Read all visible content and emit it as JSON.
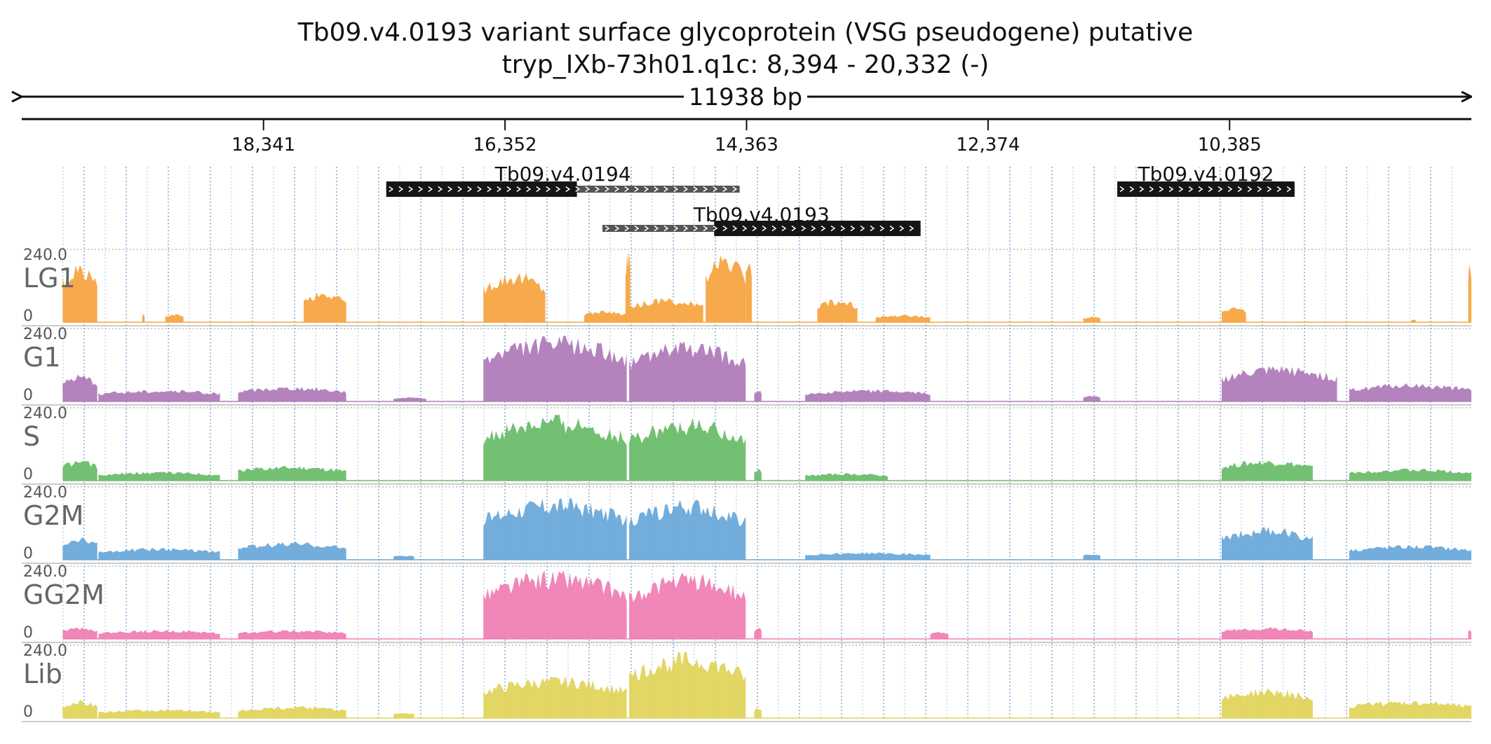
{
  "header": {
    "title": "Tb09.v4.0193  variant surface glycoprotein (VSG  pseudogene)  putative",
    "location": "tryp_IXb-73h01.q1c: 8,394 - 20,332 (-)",
    "span_label": "11938 bp"
  },
  "chart_data": {
    "type": "area",
    "region": {
      "contig": "tryp_IXb-73h01.q1c",
      "start": 8394,
      "end": 20332,
      "strand": "-"
    },
    "axis": {
      "reversed": true,
      "ticks": [
        "18,341",
        "16,352",
        "14,363",
        "12,374",
        "10,385"
      ]
    },
    "genes": [
      {
        "name": "Tb09.v4.0194",
        "start": 17330,
        "end": 14420,
        "strand": "+",
        "thick_end": 15760
      },
      {
        "name": "Tb09.v4.0193",
        "start": 15550,
        "end": 12930,
        "strand": "+",
        "thick_start": 14630
      },
      {
        "name": "Tb09.v4.0192",
        "start": 11310,
        "end": 9850,
        "strand": "+",
        "thick_start": 11310
      }
    ],
    "tracks": [
      {
        "name": "LG1",
        "color": "#f7a541",
        "ymax_label": "240.0",
        "ymin_label": "0",
        "ylim": [
          0,
          240
        ],
        "segments": [
          {
            "start": 19995,
            "end": 19710,
            "level": 200
          },
          {
            "start": 19340,
            "end": 19320,
            "level": 30
          },
          {
            "start": 19150,
            "end": 19000,
            "level": 30
          },
          {
            "start": 18010,
            "end": 17660,
            "level": 110
          },
          {
            "start": 16530,
            "end": 16020,
            "level": 170
          },
          {
            "start": 15700,
            "end": 15350,
            "level": 40
          },
          {
            "start": 15360,
            "end": 15320,
            "level": 240
          },
          {
            "start": 15330,
            "end": 14720,
            "level": 80
          },
          {
            "start": 14700,
            "end": 14370,
            "level": 230
          },
          {
            "start": 14370,
            "end": 14320,
            "level": 210
          },
          {
            "start": 13780,
            "end": 13450,
            "level": 80
          },
          {
            "start": 13300,
            "end": 12850,
            "level": 25
          },
          {
            "start": 11590,
            "end": 11450,
            "level": 20
          },
          {
            "start": 10450,
            "end": 10250,
            "level": 50
          },
          {
            "start": 8890,
            "end": 8850,
            "level": 10
          },
          {
            "start": 8420,
            "end": 8394,
            "level": 200
          }
        ]
      },
      {
        "name": "G1",
        "color": "#b07cbb",
        "ymax_label": "240.0",
        "ymin_label": "0",
        "ylim": [
          0,
          240
        ],
        "segments": [
          {
            "start": 19995,
            "end": 19710,
            "level": 90
          },
          {
            "start": 19700,
            "end": 18700,
            "level": 40
          },
          {
            "start": 18550,
            "end": 17660,
            "level": 50
          },
          {
            "start": 17270,
            "end": 17000,
            "level": 15
          },
          {
            "start": 16530,
            "end": 15350,
            "level": 220
          },
          {
            "start": 15330,
            "end": 14370,
            "level": 200
          },
          {
            "start": 14300,
            "end": 14240,
            "level": 40
          },
          {
            "start": 13880,
            "end": 12850,
            "level": 40
          },
          {
            "start": 11590,
            "end": 11450,
            "level": 20
          },
          {
            "start": 10450,
            "end": 9500,
            "level": 120
          },
          {
            "start": 9400,
            "end": 8394,
            "level": 60
          }
        ]
      },
      {
        "name": "S",
        "color": "#6bbd6b",
        "ymax_label": "240.0",
        "ymin_label": "0",
        "ylim": [
          0,
          240
        ],
        "segments": [
          {
            "start": 19995,
            "end": 19710,
            "level": 70
          },
          {
            "start": 19700,
            "end": 18700,
            "level": 30
          },
          {
            "start": 18550,
            "end": 17660,
            "level": 50
          },
          {
            "start": 16530,
            "end": 15350,
            "level": 220
          },
          {
            "start": 15330,
            "end": 14370,
            "level": 210
          },
          {
            "start": 14300,
            "end": 14240,
            "level": 40
          },
          {
            "start": 13880,
            "end": 13200,
            "level": 25
          },
          {
            "start": 10450,
            "end": 9700,
            "level": 70
          },
          {
            "start": 9400,
            "end": 8394,
            "level": 40
          }
        ]
      },
      {
        "name": "G2M",
        "color": "#6aa9da",
        "ymax_label": "240.0",
        "ymin_label": "0",
        "ylim": [
          0,
          240
        ],
        "segments": [
          {
            "start": 19995,
            "end": 19710,
            "level": 80
          },
          {
            "start": 19700,
            "end": 18700,
            "level": 40
          },
          {
            "start": 18550,
            "end": 17660,
            "level": 60
          },
          {
            "start": 17270,
            "end": 17100,
            "level": 15
          },
          {
            "start": 16530,
            "end": 15350,
            "level": 210
          },
          {
            "start": 15330,
            "end": 14370,
            "level": 200
          },
          {
            "start": 13880,
            "end": 12850,
            "level": 25
          },
          {
            "start": 11590,
            "end": 11450,
            "level": 20
          },
          {
            "start": 10450,
            "end": 9700,
            "level": 110
          },
          {
            "start": 9400,
            "end": 8394,
            "level": 50
          }
        ]
      },
      {
        "name": "GG2M",
        "color": "#f07fb4",
        "ymax_label": "240.0",
        "ymin_label": "0",
        "ylim": [
          0,
          240
        ],
        "segments": [
          {
            "start": 19995,
            "end": 19710,
            "level": 40
          },
          {
            "start": 19700,
            "end": 18700,
            "level": 30
          },
          {
            "start": 18550,
            "end": 17660,
            "level": 30
          },
          {
            "start": 16530,
            "end": 15350,
            "level": 230
          },
          {
            "start": 15330,
            "end": 14370,
            "level": 220
          },
          {
            "start": 14300,
            "end": 14240,
            "level": 40
          },
          {
            "start": 12850,
            "end": 12700,
            "level": 25
          },
          {
            "start": 10450,
            "end": 9700,
            "level": 40
          },
          {
            "start": 8420,
            "end": 8394,
            "level": 30
          }
        ]
      },
      {
        "name": "Lib",
        "color": "#e0d45c",
        "ymax_label": "240.0",
        "ymin_label": "0",
        "ylim": [
          0,
          240
        ],
        "segments": [
          {
            "start": 19995,
            "end": 19710,
            "level": 60
          },
          {
            "start": 19700,
            "end": 18700,
            "level": 30
          },
          {
            "start": 18550,
            "end": 17660,
            "level": 40
          },
          {
            "start": 17270,
            "end": 17100,
            "level": 20
          },
          {
            "start": 16530,
            "end": 15350,
            "level": 140
          },
          {
            "start": 15330,
            "end": 14370,
            "level": 220
          },
          {
            "start": 14300,
            "end": 14240,
            "level": 40
          },
          {
            "start": 10450,
            "end": 9700,
            "level": 100
          },
          {
            "start": 9400,
            "end": 8394,
            "level": 60
          }
        ]
      }
    ]
  }
}
